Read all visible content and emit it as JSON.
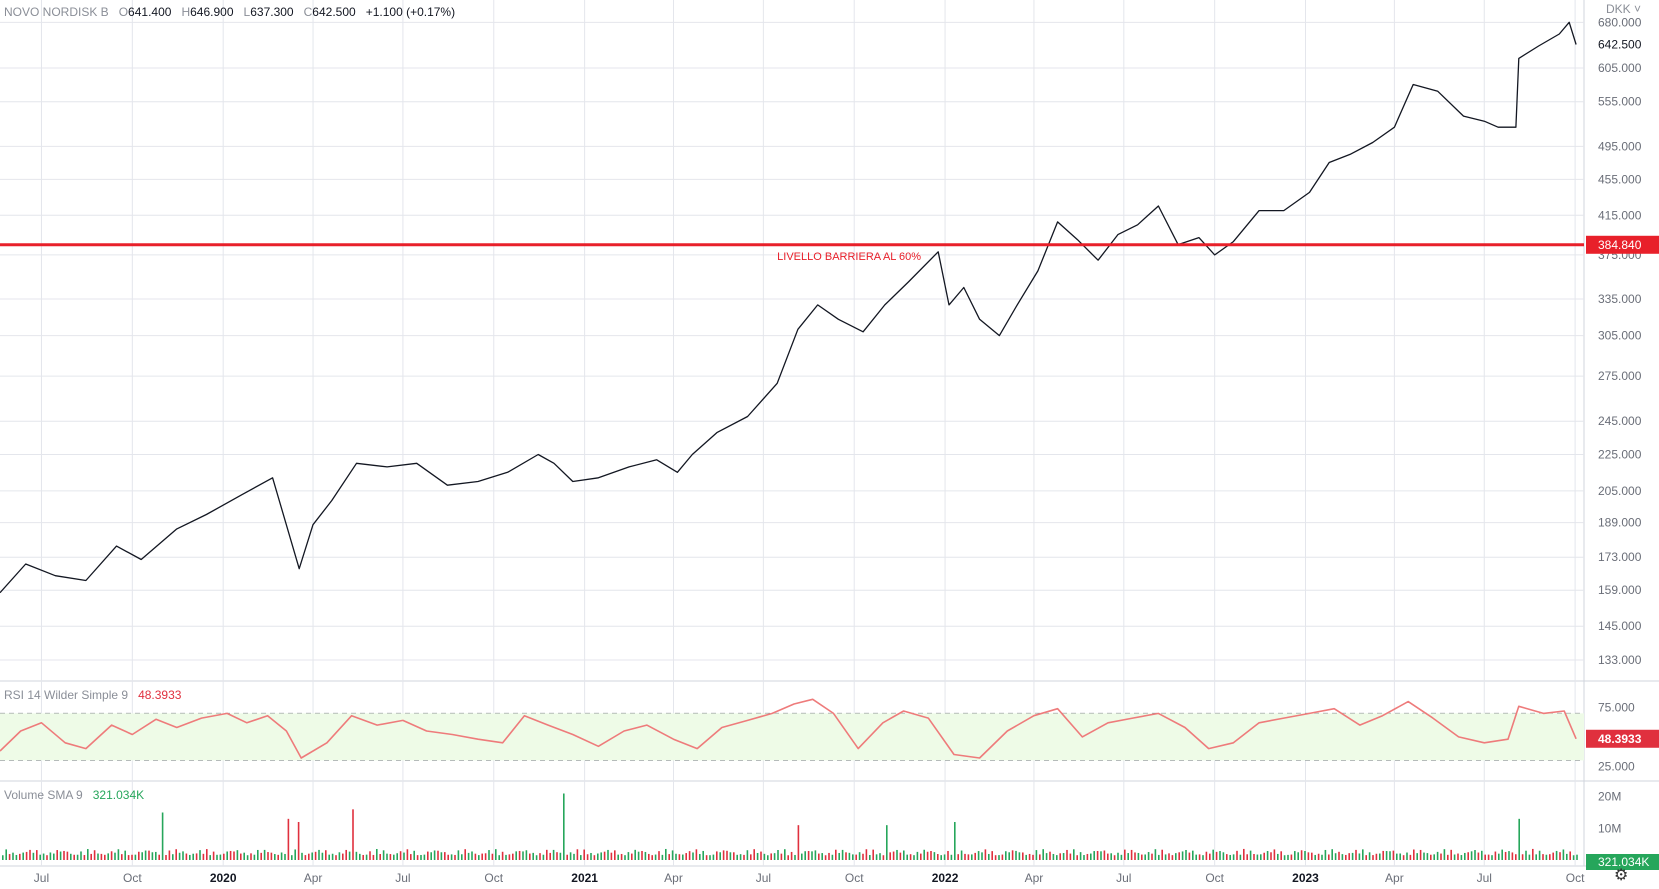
{
  "legend": {
    "symbol": "NOVO NORDISK B",
    "open_label": "O",
    "open": "641.400",
    "high_label": "H",
    "high": "646.900",
    "low_label": "L",
    "low": "637.300",
    "close_label": "C",
    "close": "642.500",
    "change": "+1.100 (+0.17%)"
  },
  "rsi_legend": {
    "label": "RSI 14 Wilder Simple 9",
    "value": "48.3933"
  },
  "volume_legend": {
    "label": "Volume SMA 9",
    "value": "321.034K"
  },
  "currency": "DKK",
  "colors": {
    "price_line": "#131722",
    "barrier": "#e8202a",
    "rsi_line": "#ee7b7b",
    "rsi_band": "#eefbe7",
    "vol_up": "#26a65b",
    "vol_down": "#e0303e",
    "grid": "#e4e6ec",
    "axis_text": "#6a6e78"
  },
  "chart_data": [
    {
      "type": "line",
      "pane": "price",
      "title": "",
      "y_scale": "log",
      "ylim": [
        127,
        720
      ],
      "y_ticks": [
        "680.000",
        "605.000",
        "555.000",
        "495.000",
        "455.000",
        "415.000",
        "375.000",
        "335.000",
        "305.000",
        "275.000",
        "245.000",
        "225.000",
        "205.000",
        "189.000",
        "173.000",
        "159.000",
        "145.000",
        "133.000"
      ],
      "x_ticks": [
        "Jul",
        "Oct",
        "2020",
        "Apr",
        "Jul",
        "Oct",
        "2021",
        "Apr",
        "Jul",
        "Oct",
        "2022",
        "Apr",
        "Jul",
        "Oct",
        "2023",
        "Apr",
        "Jul",
        "Oct"
      ],
      "x_tick_dates": [
        "2019-07-01",
        "2019-10-01",
        "2020-01-01",
        "2020-04-01",
        "2020-07-01",
        "2020-10-01",
        "2021-01-01",
        "2021-04-01",
        "2021-07-01",
        "2021-10-01",
        "2022-01-01",
        "2022-04-01",
        "2022-07-01",
        "2022-10-01",
        "2023-01-01",
        "2023-04-01",
        "2023-07-01",
        "2023-10-01"
      ],
      "xlim": [
        "2019-05-20",
        "2023-10-10"
      ],
      "grid": true,
      "series": [
        {
          "x": [
            "2019-05-20",
            "2019-06-15",
            "2019-07-15",
            "2019-08-15",
            "2019-09-15",
            "2019-10-10",
            "2019-11-15",
            "2019-12-15",
            "2020-01-20",
            "2020-02-20",
            "2020-03-10",
            "2020-03-18",
            "2020-04-01",
            "2020-04-20",
            "2020-05-15",
            "2020-06-15",
            "2020-07-15",
            "2020-08-15",
            "2020-09-15",
            "2020-10-15",
            "2020-11-15",
            "2020-12-01",
            "2020-12-20",
            "2021-01-15",
            "2021-02-15",
            "2021-03-15",
            "2021-04-05",
            "2021-04-20",
            "2021-05-15",
            "2021-06-15",
            "2021-07-15",
            "2021-08-05",
            "2021-08-25",
            "2021-09-15",
            "2021-10-10",
            "2021-11-01",
            "2021-11-25",
            "2021-12-25",
            "2022-01-05",
            "2022-01-20",
            "2022-02-05",
            "2022-02-25",
            "2022-03-15",
            "2022-04-05",
            "2022-04-25",
            "2022-05-15",
            "2022-06-05",
            "2022-06-25",
            "2022-07-15",
            "2022-08-05",
            "2022-08-25",
            "2022-09-15",
            "2022-10-01",
            "2022-10-20",
            "2022-11-15",
            "2022-12-10",
            "2023-01-05",
            "2023-01-25",
            "2023-02-15",
            "2023-03-10",
            "2023-04-01",
            "2023-04-20",
            "2023-05-15",
            "2023-06-10",
            "2023-07-01",
            "2023-07-15",
            "2023-08-02",
            "2023-08-05",
            "2023-08-25",
            "2023-09-15",
            "2023-09-25",
            "2023-10-02"
          ],
          "values": [
            158,
            170,
            165,
            163,
            178,
            172,
            186,
            193,
            203,
            212,
            180,
            168,
            188,
            200,
            220,
            218,
            220,
            208,
            210,
            215,
            225,
            220,
            210,
            212,
            218,
            222,
            215,
            225,
            238,
            248,
            270,
            310,
            330,
            318,
            308,
            330,
            350,
            378,
            330,
            345,
            318,
            305,
            330,
            360,
            408,
            390,
            370,
            395,
            405,
            425,
            385,
            392,
            375,
            388,
            420,
            420,
            440,
            475,
            485,
            500,
            520,
            580,
            570,
            535,
            528,
            520,
            520,
            620,
            640,
            660,
            680,
            642.5
          ]
        }
      ],
      "annotations": [
        {
          "text": "LIVELLO BARRIERA AL 60%",
          "y": 384.84,
          "x": "2021-07-15"
        }
      ],
      "price_labels": {
        "last": "642.500",
        "barrier": "384.840"
      }
    },
    {
      "type": "line",
      "pane": "rsi",
      "ylim": [
        15,
        95
      ],
      "band": [
        30,
        70
      ],
      "y_ticks": [
        "75.000",
        "25.000"
      ],
      "last_label": "48.3933",
      "series": [
        {
          "x": [
            "2019-05-20",
            "2019-06-10",
            "2019-07-01",
            "2019-07-25",
            "2019-08-15",
            "2019-09-10",
            "2019-10-01",
            "2019-10-25",
            "2019-11-15",
            "2019-12-10",
            "2020-01-05",
            "2020-01-25",
            "2020-02-15",
            "2020-03-05",
            "2020-03-20",
            "2020-04-15",
            "2020-05-10",
            "2020-06-05",
            "2020-07-01",
            "2020-07-25",
            "2020-08-20",
            "2020-09-15",
            "2020-10-10",
            "2020-11-01",
            "2020-11-25",
            "2020-12-20",
            "2021-01-15",
            "2021-02-10",
            "2021-03-05",
            "2021-04-01",
            "2021-04-25",
            "2021-05-20",
            "2021-06-15",
            "2021-07-10",
            "2021-08-01",
            "2021-08-20",
            "2021-09-10",
            "2021-10-05",
            "2021-10-30",
            "2021-11-20",
            "2021-12-15",
            "2022-01-10",
            "2022-02-05",
            "2022-03-05",
            "2022-04-01",
            "2022-04-25",
            "2022-05-20",
            "2022-06-15",
            "2022-07-10",
            "2022-08-05",
            "2022-09-01",
            "2022-09-25",
            "2022-10-20",
            "2022-11-15",
            "2022-12-10",
            "2023-01-05",
            "2023-01-30",
            "2023-02-25",
            "2023-03-20",
            "2023-04-15",
            "2023-05-10",
            "2023-06-05",
            "2023-07-01",
            "2023-07-25",
            "2023-08-05",
            "2023-08-30",
            "2023-09-20",
            "2023-10-02"
          ],
          "values": [
            38,
            55,
            62,
            45,
            40,
            60,
            52,
            65,
            58,
            66,
            70,
            62,
            68,
            55,
            32,
            45,
            68,
            60,
            64,
            55,
            52,
            48,
            45,
            68,
            60,
            52,
            42,
            55,
            60,
            48,
            40,
            58,
            64,
            70,
            78,
            82,
            70,
            40,
            62,
            72,
            66,
            35,
            32,
            55,
            68,
            74,
            50,
            62,
            66,
            70,
            58,
            40,
            45,
            62,
            66,
            70,
            74,
            60,
            68,
            80,
            66,
            50,
            45,
            48,
            76,
            70,
            72,
            48.39
          ]
        }
      ]
    },
    {
      "type": "bar",
      "pane": "volume",
      "unit": "shares",
      "y_ticks": [
        "20M",
        "10M"
      ],
      "ylim": [
        0,
        24000000
      ],
      "last_label": "321.034K",
      "base_volume": 2500000,
      "spikes": [
        {
          "x": "2019-11-01",
          "value": 15000000
        },
        {
          "x": "2020-03-05",
          "value": 13000000
        },
        {
          "x": "2020-03-15",
          "value": 12000000
        },
        {
          "x": "2020-05-10",
          "value": 16000000
        },
        {
          "x": "2020-12-10",
          "value": 21000000
        },
        {
          "x": "2021-08-05",
          "value": 11000000
        },
        {
          "x": "2021-11-01",
          "value": 11000000
        },
        {
          "x": "2022-01-10",
          "value": 12000000
        },
        {
          "x": "2023-08-05",
          "value": 13000000
        }
      ]
    }
  ]
}
